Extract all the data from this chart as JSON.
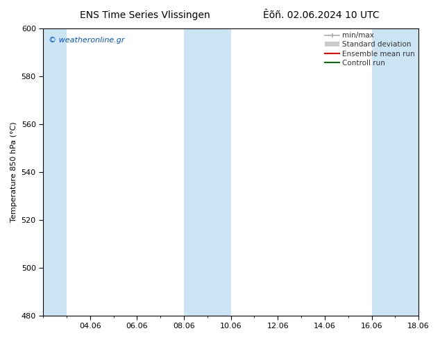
{
  "title_left": "ENS Time Series Vlissingen",
  "title_right": "Êõñ. 02.06.2024 10 UTC",
  "ylabel": "Temperature 850 hPa (°C)",
  "ylim": [
    480,
    600
  ],
  "yticks": [
    480,
    500,
    520,
    540,
    560,
    580,
    600
  ],
  "xtick_labels": [
    "04.06",
    "06.06",
    "08.06",
    "10.06",
    "12.06",
    "14.06",
    "16.06",
    "18.06"
  ],
  "xtick_positions": [
    2,
    4,
    6,
    8,
    10,
    12,
    14,
    16
  ],
  "xlim": [
    0,
    16
  ],
  "shaded_bands": [
    {
      "x_start": 0,
      "x_end": 1.0,
      "color": "#cce5f5"
    },
    {
      "x_start": 6.0,
      "x_end": 8.0,
      "color": "#cce5f5"
    },
    {
      "x_start": 14.0,
      "x_end": 16.0,
      "color": "#cce5f5"
    }
  ],
  "watermark_text": "© weatheronline.gr",
  "watermark_color": "#0055cc",
  "legend_items": [
    {
      "label": "min/max",
      "color": "#aaaaaa",
      "lw": 1.2,
      "style": "minmax"
    },
    {
      "label": "Standard deviation",
      "color": "#cccccc",
      "lw": 6,
      "style": "thick"
    },
    {
      "label": "Ensemble mean run",
      "color": "#ff0000",
      "lw": 1.5,
      "style": "line"
    },
    {
      "label": "Controll run",
      "color": "#007700",
      "lw": 1.5,
      "style": "line"
    }
  ],
  "bg_color": "#ffffff",
  "plot_bg_color": "#ffffff",
  "spine_color": "#000000",
  "tick_color": "#000000",
  "font_size_title": 10,
  "font_size_tick": 8,
  "font_size_label": 8,
  "font_size_legend": 7.5,
  "font_size_watermark": 8
}
